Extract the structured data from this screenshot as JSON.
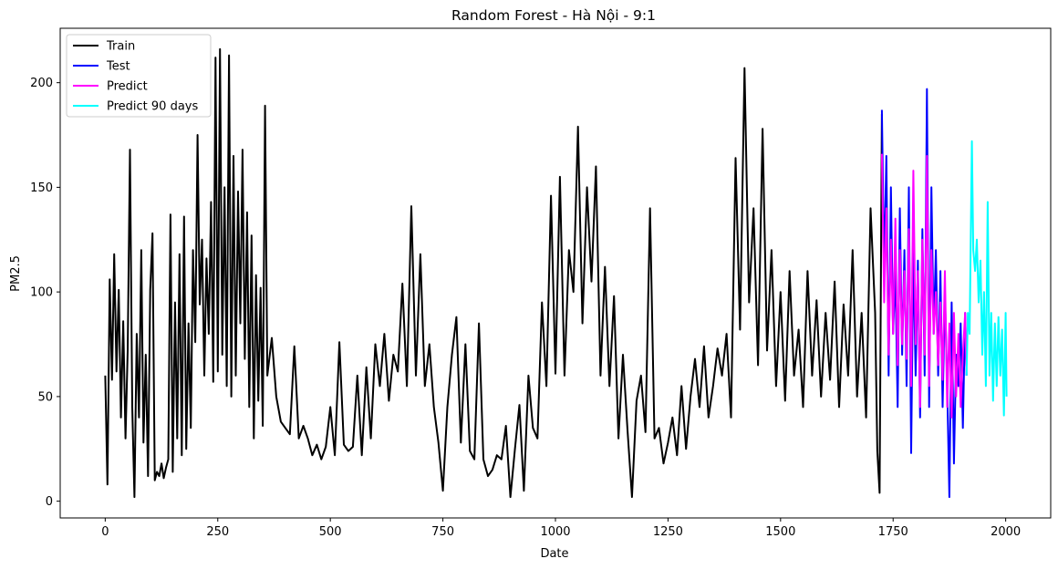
{
  "chart_data": {
    "type": "line",
    "title": "Random Forest - Hà Nội - 9:1",
    "xlabel": "Date",
    "ylabel": "PM2.5",
    "xlim": [
      -100,
      2100
    ],
    "ylim": [
      -8,
      226
    ],
    "xticks": [
      0,
      250,
      500,
      750,
      1000,
      1250,
      1500,
      1750,
      2000
    ],
    "yticks": [
      0,
      50,
      100,
      150,
      200
    ],
    "grid": false,
    "legend_position": "top-left",
    "series": [
      {
        "name": "Train",
        "color": "#000000",
        "points": [
          [
            0,
            60
          ],
          [
            5,
            8
          ],
          [
            10,
            106
          ],
          [
            15,
            58
          ],
          [
            20,
            118
          ],
          [
            25,
            62
          ],
          [
            30,
            101
          ],
          [
            35,
            40
          ],
          [
            40,
            86
          ],
          [
            45,
            30
          ],
          [
            50,
            72
          ],
          [
            55,
            168
          ],
          [
            60,
            45
          ],
          [
            65,
            2
          ],
          [
            70,
            80
          ],
          [
            75,
            40
          ],
          [
            80,
            120
          ],
          [
            85,
            28
          ],
          [
            90,
            70
          ],
          [
            95,
            12
          ],
          [
            100,
            101
          ],
          [
            105,
            128
          ],
          [
            110,
            10
          ],
          [
            115,
            14
          ],
          [
            120,
            12
          ],
          [
            125,
            18
          ],
          [
            130,
            11
          ],
          [
            135,
            16
          ],
          [
            140,
            20
          ],
          [
            145,
            137
          ],
          [
            150,
            14
          ],
          [
            155,
            95
          ],
          [
            160,
            30
          ],
          [
            165,
            118
          ],
          [
            170,
            22
          ],
          [
            175,
            136
          ],
          [
            180,
            25
          ],
          [
            185,
            85
          ],
          [
            190,
            35
          ],
          [
            195,
            120
          ],
          [
            200,
            76
          ],
          [
            205,
            175
          ],
          [
            210,
            94
          ],
          [
            215,
            125
          ],
          [
            220,
            60
          ],
          [
            225,
            116
          ],
          [
            230,
            80
          ],
          [
            235,
            143
          ],
          [
            240,
            57
          ],
          [
            245,
            212
          ],
          [
            250,
            62
          ],
          [
            255,
            216
          ],
          [
            260,
            70
          ],
          [
            265,
            150
          ],
          [
            270,
            55
          ],
          [
            275,
            213
          ],
          [
            280,
            50
          ],
          [
            285,
            165
          ],
          [
            290,
            60
          ],
          [
            295,
            148
          ],
          [
            300,
            85
          ],
          [
            305,
            168
          ],
          [
            310,
            68
          ],
          [
            315,
            138
          ],
          [
            320,
            45
          ],
          [
            325,
            127
          ],
          [
            330,
            30
          ],
          [
            335,
            108
          ],
          [
            340,
            48
          ],
          [
            345,
            102
          ],
          [
            350,
            36
          ],
          [
            355,
            189
          ],
          [
            360,
            60
          ],
          [
            370,
            78
          ],
          [
            380,
            50
          ],
          [
            390,
            38
          ],
          [
            400,
            35
          ],
          [
            410,
            32
          ],
          [
            420,
            74
          ],
          [
            430,
            30
          ],
          [
            440,
            36
          ],
          [
            450,
            30
          ],
          [
            460,
            22
          ],
          [
            470,
            27
          ],
          [
            480,
            20
          ],
          [
            490,
            26
          ],
          [
            500,
            45
          ],
          [
            510,
            22
          ],
          [
            520,
            76
          ],
          [
            530,
            27
          ],
          [
            540,
            24
          ],
          [
            550,
            26
          ],
          [
            560,
            60
          ],
          [
            570,
            22
          ],
          [
            580,
            64
          ],
          [
            590,
            30
          ],
          [
            600,
            75
          ],
          [
            610,
            55
          ],
          [
            620,
            80
          ],
          [
            630,
            48
          ],
          [
            640,
            70
          ],
          [
            650,
            62
          ],
          [
            660,
            104
          ],
          [
            670,
            55
          ],
          [
            680,
            141
          ],
          [
            690,
            60
          ],
          [
            700,
            118
          ],
          [
            710,
            55
          ],
          [
            720,
            75
          ],
          [
            730,
            45
          ],
          [
            740,
            28
          ],
          [
            750,
            5
          ],
          [
            760,
            45
          ],
          [
            770,
            70
          ],
          [
            780,
            88
          ],
          [
            790,
            28
          ],
          [
            800,
            75
          ],
          [
            810,
            24
          ],
          [
            820,
            20
          ],
          [
            830,
            85
          ],
          [
            840,
            20
          ],
          [
            850,
            12
          ],
          [
            860,
            15
          ],
          [
            870,
            22
          ],
          [
            880,
            20
          ],
          [
            890,
            36
          ],
          [
            900,
            2
          ],
          [
            910,
            25
          ],
          [
            920,
            46
          ],
          [
            930,
            5
          ],
          [
            940,
            60
          ],
          [
            950,
            35
          ],
          [
            960,
            30
          ],
          [
            970,
            95
          ],
          [
            980,
            55
          ],
          [
            990,
            146
          ],
          [
            1000,
            61
          ],
          [
            1010,
            155
          ],
          [
            1020,
            60
          ],
          [
            1030,
            120
          ],
          [
            1040,
            100
          ],
          [
            1050,
            179
          ],
          [
            1060,
            85
          ],
          [
            1070,
            150
          ],
          [
            1080,
            105
          ],
          [
            1090,
            160
          ],
          [
            1100,
            60
          ],
          [
            1110,
            112
          ],
          [
            1120,
            55
          ],
          [
            1130,
            98
          ],
          [
            1140,
            30
          ],
          [
            1150,
            70
          ],
          [
            1160,
            34
          ],
          [
            1170,
            2
          ],
          [
            1180,
            48
          ],
          [
            1190,
            60
          ],
          [
            1200,
            33
          ],
          [
            1210,
            140
          ],
          [
            1220,
            30
          ],
          [
            1230,
            35
          ],
          [
            1240,
            18
          ],
          [
            1250,
            28
          ],
          [
            1260,
            40
          ],
          [
            1270,
            22
          ],
          [
            1280,
            55
          ],
          [
            1290,
            25
          ],
          [
            1300,
            50
          ],
          [
            1310,
            68
          ],
          [
            1320,
            45
          ],
          [
            1330,
            74
          ],
          [
            1340,
            40
          ],
          [
            1350,
            55
          ],
          [
            1360,
            73
          ],
          [
            1370,
            60
          ],
          [
            1380,
            80
          ],
          [
            1390,
            40
          ],
          [
            1400,
            164
          ],
          [
            1410,
            82
          ],
          [
            1420,
            207
          ],
          [
            1430,
            95
          ],
          [
            1440,
            140
          ],
          [
            1450,
            65
          ],
          [
            1460,
            178
          ],
          [
            1470,
            72
          ],
          [
            1480,
            120
          ],
          [
            1490,
            55
          ],
          [
            1500,
            100
          ],
          [
            1510,
            48
          ],
          [
            1520,
            110
          ],
          [
            1530,
            60
          ],
          [
            1540,
            82
          ],
          [
            1550,
            45
          ],
          [
            1560,
            110
          ],
          [
            1570,
            60
          ],
          [
            1580,
            96
          ],
          [
            1590,
            50
          ],
          [
            1600,
            90
          ],
          [
            1610,
            58
          ],
          [
            1620,
            105
          ],
          [
            1630,
            45
          ],
          [
            1640,
            94
          ],
          [
            1650,
            60
          ],
          [
            1660,
            120
          ],
          [
            1670,
            50
          ],
          [
            1680,
            90
          ],
          [
            1690,
            40
          ],
          [
            1700,
            140
          ],
          [
            1710,
            90
          ],
          [
            1715,
            24
          ],
          [
            1720,
            4
          ],
          [
            1725,
            185
          ]
        ]
      },
      {
        "name": "Test",
        "color": "#0000ff",
        "points": [
          [
            1725,
            187
          ],
          [
            1730,
            110
          ],
          [
            1735,
            165
          ],
          [
            1740,
            60
          ],
          [
            1745,
            150
          ],
          [
            1750,
            80
          ],
          [
            1755,
            110
          ],
          [
            1760,
            45
          ],
          [
            1765,
            140
          ],
          [
            1770,
            70
          ],
          [
            1775,
            120
          ],
          [
            1780,
            55
          ],
          [
            1785,
            150
          ],
          [
            1790,
            23
          ],
          [
            1795,
            120
          ],
          [
            1800,
            60
          ],
          [
            1805,
            115
          ],
          [
            1810,
            40
          ],
          [
            1815,
            130
          ],
          [
            1820,
            60
          ],
          [
            1825,
            197
          ],
          [
            1830,
            45
          ],
          [
            1835,
            150
          ],
          [
            1840,
            80
          ],
          [
            1845,
            120
          ],
          [
            1850,
            60
          ],
          [
            1855,
            110
          ],
          [
            1860,
            45
          ],
          [
            1865,
            100
          ],
          [
            1870,
            55
          ],
          [
            1875,
            2
          ],
          [
            1880,
            95
          ],
          [
            1885,
            18
          ],
          [
            1890,
            70
          ],
          [
            1895,
            55
          ],
          [
            1900,
            85
          ],
          [
            1905,
            35
          ],
          [
            1910,
            90
          ],
          [
            1913,
            60
          ]
        ]
      },
      {
        "name": "Predict",
        "color": "#ff00ff",
        "points": [
          [
            1725,
            166
          ],
          [
            1730,
            95
          ],
          [
            1735,
            140
          ],
          [
            1740,
            70
          ],
          [
            1745,
            125
          ],
          [
            1750,
            80
          ],
          [
            1755,
            135
          ],
          [
            1760,
            65
          ],
          [
            1765,
            120
          ],
          [
            1770,
            75
          ],
          [
            1775,
            110
          ],
          [
            1780,
            68
          ],
          [
            1785,
            130
          ],
          [
            1790,
            55
          ],
          [
            1795,
            158
          ],
          [
            1800,
            75
          ],
          [
            1805,
            110
          ],
          [
            1810,
            45
          ],
          [
            1815,
            125
          ],
          [
            1820,
            70
          ],
          [
            1825,
            165
          ],
          [
            1830,
            55
          ],
          [
            1835,
            120
          ],
          [
            1840,
            80
          ],
          [
            1845,
            100
          ],
          [
            1850,
            65
          ],
          [
            1855,
            95
          ],
          [
            1860,
            58
          ],
          [
            1865,
            110
          ],
          [
            1870,
            45
          ],
          [
            1875,
            85
          ],
          [
            1880,
            40
          ],
          [
            1885,
            90
          ],
          [
            1890,
            50
          ],
          [
            1895,
            80
          ],
          [
            1900,
            45
          ],
          [
            1905,
            70
          ],
          [
            1910,
            90
          ],
          [
            1913,
            60
          ]
        ]
      },
      {
        "name": "Predict 90 days",
        "color": "#00ffff",
        "points": [
          [
            1913,
            60
          ],
          [
            1916,
            90
          ],
          [
            1920,
            80
          ],
          [
            1925,
            172
          ],
          [
            1928,
            120
          ],
          [
            1932,
            110
          ],
          [
            1936,
            125
          ],
          [
            1940,
            95
          ],
          [
            1944,
            115
          ],
          [
            1948,
            70
          ],
          [
            1952,
            100
          ],
          [
            1956,
            55
          ],
          [
            1960,
            143
          ],
          [
            1964,
            60
          ],
          [
            1968,
            90
          ],
          [
            1972,
            48
          ],
          [
            1976,
            85
          ],
          [
            1980,
            55
          ],
          [
            1984,
            88
          ],
          [
            1988,
            60
          ],
          [
            1992,
            82
          ],
          [
            1996,
            41
          ],
          [
            2000,
            90
          ],
          [
            2002,
            50
          ]
        ]
      }
    ]
  }
}
